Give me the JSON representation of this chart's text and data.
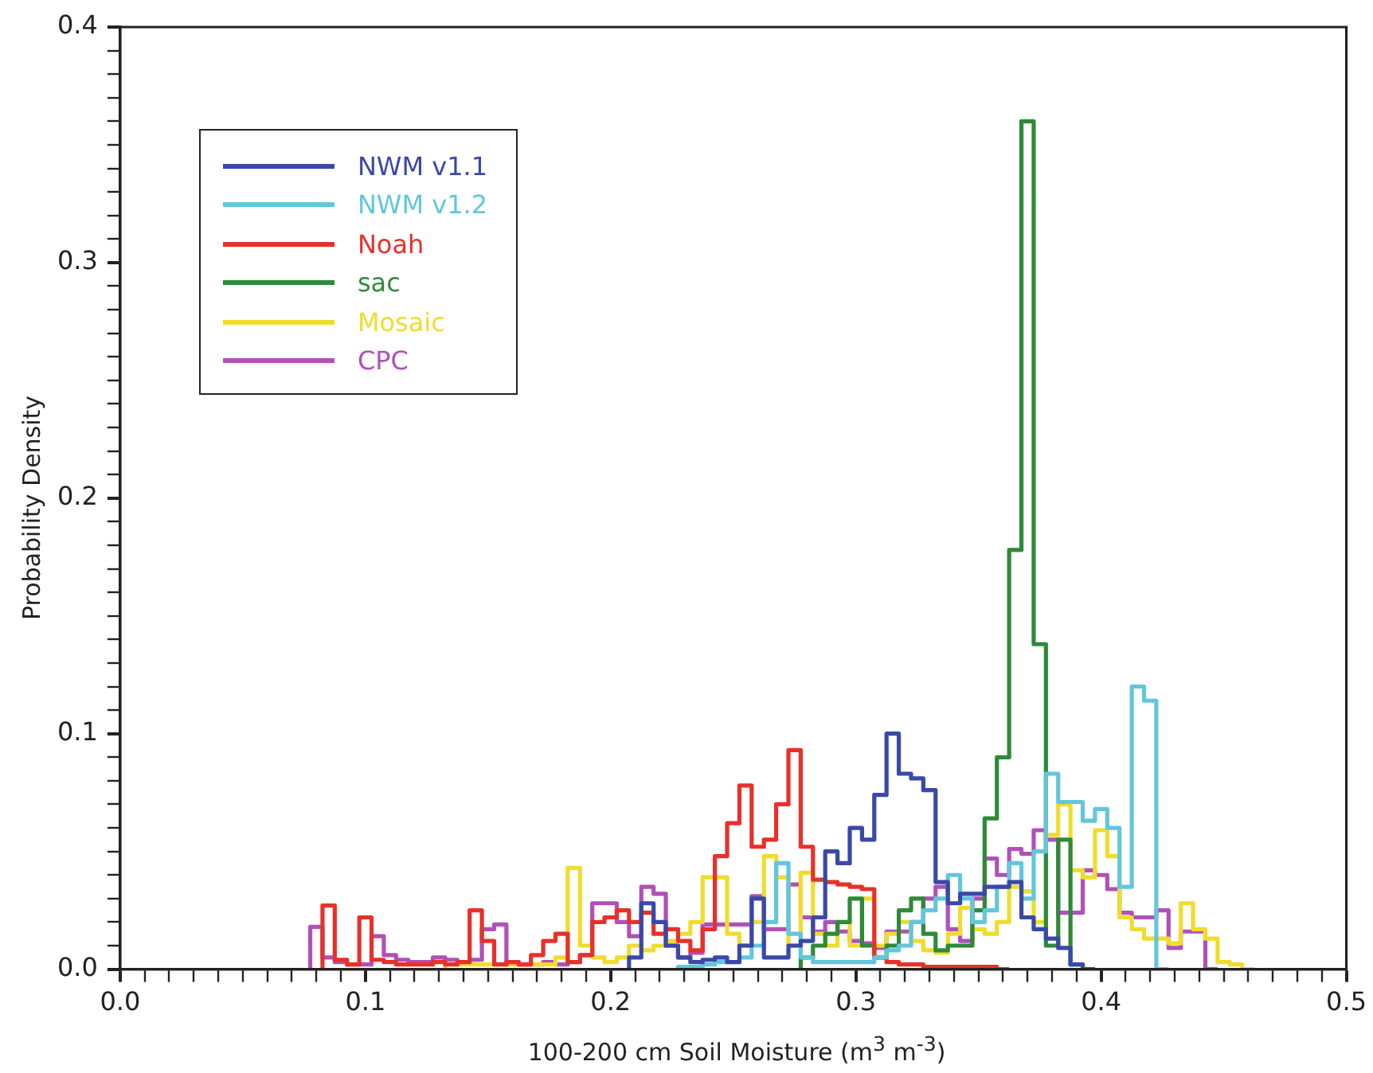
{
  "chart_data": {
    "type": "step",
    "xlabel": "100-200 cm Soil Moisture (m$^{3}$ m$^{-3}$)",
    "ylabel": "Probability Density",
    "x": [
      0.0775,
      0.0825,
      0.0875,
      0.0925,
      0.0975,
      0.1025,
      0.1075,
      0.1125,
      0.1175,
      0.1225,
      0.1275,
      0.1325,
      0.1375,
      0.1425,
      0.1475,
      0.1525,
      0.1575,
      0.1625,
      0.1675,
      0.1725,
      0.1775,
      0.1825,
      0.1875,
      0.1925,
      0.1975,
      0.2025,
      0.2075,
      0.2125,
      0.2175,
      0.2225,
      0.2275,
      0.2325,
      0.2375,
      0.2425,
      0.2475,
      0.2525,
      0.2575,
      0.2625,
      0.2675,
      0.2725,
      0.2775,
      0.2825,
      0.2875,
      0.2925,
      0.2975,
      0.3025,
      0.3075,
      0.3125,
      0.3175,
      0.3225,
      0.3275,
      0.3325,
      0.3375,
      0.3425,
      0.3475,
      0.3525,
      0.3575,
      0.3625,
      0.3675,
      0.3725,
      0.3775,
      0.3825,
      0.3875,
      0.3925,
      0.3975,
      0.4025,
      0.4075,
      0.4125,
      0.4175,
      0.4225,
      0.4275,
      0.4325,
      0.4375,
      0.4425,
      0.4475,
      0.4525,
      0.4575,
      0.4625
    ],
    "series": [
      {
        "name": "NWM v1.1",
        "color": "#3a48a8",
        "values": [
          null,
          null,
          null,
          null,
          null,
          null,
          null,
          null,
          null,
          null,
          null,
          null,
          null,
          null,
          null,
          null,
          null,
          null,
          null,
          null,
          null,
          null,
          null,
          null,
          null,
          null,
          0,
          0.005,
          0.028,
          0.02,
          0.01,
          0.005,
          0.003,
          0.004,
          0.005,
          0.003,
          0.01,
          0.03,
          0.005,
          0.005,
          0.01,
          0.012,
          0.022,
          0.05,
          0.045,
          0.06,
          0.055,
          0.074,
          0.1,
          0.083,
          0.081,
          0.076,
          0.037,
          0.028,
          0.032,
          0.032,
          0.035,
          0.035,
          0.037,
          0.022,
          0.017,
          0.013,
          0.009,
          0.002,
          0,
          null,
          null,
          null,
          null,
          null,
          null,
          null,
          null,
          null,
          null,
          null,
          null,
          null
        ]
      },
      {
        "name": "NWM v1.2",
        "color": "#62c6dc",
        "values": [
          null,
          null,
          null,
          null,
          null,
          null,
          null,
          null,
          null,
          null,
          null,
          null,
          null,
          null,
          null,
          null,
          null,
          null,
          null,
          null,
          null,
          null,
          null,
          null,
          null,
          null,
          null,
          null,
          null,
          null,
          0,
          0.001,
          0.001,
          0.002,
          0.003,
          0.003,
          0.005,
          0.01,
          0.02,
          0.045,
          0.015,
          0.005,
          0.003,
          0.003,
          0.003,
          0.003,
          0.003,
          0.005,
          0.008,
          0.01,
          0.02,
          0.025,
          0.03,
          0.04,
          0.03,
          0.02,
          0.025,
          0.035,
          0.045,
          0.03,
          0.05,
          0.083,
          0.071,
          0.071,
          0.063,
          0.068,
          0.06,
          0.035,
          0.12,
          0.114,
          0,
          null,
          null,
          null,
          null,
          null,
          null,
          null
        ]
      },
      {
        "name": "Noah",
        "color": "#e8302a",
        "values": [
          null,
          0,
          0.027,
          0.004,
          0.002,
          0.022,
          0.004,
          0.003,
          0.002,
          0.002,
          0.002,
          0.003,
          0.002,
          0.003,
          0.025,
          0.012,
          0.002,
          0.003,
          0.002,
          0.006,
          0.012,
          0.015,
          0.003,
          0.006,
          0.02,
          0.022,
          0.025,
          0.02,
          0.024,
          0.015,
          0.017,
          0.012,
          0.008,
          0.017,
          0.048,
          0.062,
          0.078,
          0.052,
          0.055,
          0.07,
          0.093,
          0.052,
          0.038,
          0.037,
          0.036,
          0.035,
          0.034,
          0.005,
          0.003,
          0.002,
          0.002,
          0.001,
          0.001,
          0.001,
          0.001,
          0.001,
          0.001,
          0,
          null,
          null,
          null,
          null,
          null,
          null,
          null,
          null,
          null,
          null,
          null,
          null,
          null,
          null,
          null,
          null,
          null,
          null,
          null,
          null
        ]
      },
      {
        "name": "sac",
        "color": "#2e8a38",
        "values": [
          null,
          null,
          null,
          null,
          null,
          null,
          null,
          null,
          null,
          null,
          null,
          null,
          null,
          null,
          null,
          null,
          null,
          null,
          null,
          null,
          null,
          null,
          null,
          null,
          null,
          null,
          null,
          null,
          null,
          null,
          null,
          null,
          null,
          null,
          null,
          null,
          null,
          null,
          null,
          null,
          0,
          0.005,
          0.01,
          0.015,
          0.02,
          0.03,
          0.01,
          0.005,
          0.01,
          0.025,
          0.03,
          0.015,
          0.008,
          0.01,
          0.01,
          0.025,
          0.064,
          0.09,
          0.178,
          0.36,
          0.138,
          0.01,
          0.055,
          0.002,
          0,
          null,
          null,
          null,
          null,
          null,
          null,
          null,
          null,
          null,
          null,
          null,
          null,
          null
        ]
      },
      {
        "name": "Mosaic",
        "color": "#f0dc2c",
        "values": [
          null,
          null,
          null,
          null,
          null,
          null,
          null,
          null,
          null,
          null,
          null,
          0,
          0.002,
          0.002,
          0.002,
          0.002,
          0.002,
          0.002,
          0.002,
          0.002,
          0.002,
          0.005,
          0.043,
          0.01,
          0.005,
          0.003,
          0.005,
          0.01,
          0.008,
          0.01,
          0.012,
          0.015,
          0.02,
          0.039,
          0.039,
          0.015,
          0.01,
          0.02,
          0.048,
          0.039,
          0.01,
          0.041,
          0.015,
          0.01,
          0.02,
          0.01,
          0.03,
          0.01,
          0.015,
          0.02,
          0.012,
          0.008,
          0.007,
          0.015,
          0.026,
          0.017,
          0.015,
          0.02,
          0.035,
          0.033,
          0.02,
          0.057,
          0.07,
          0.042,
          0.039,
          0.059,
          0.048,
          0.022,
          0.017,
          0.013,
          0.013,
          0.011,
          0.028,
          0.017,
          0.013,
          0.003,
          0.002,
          0
        ]
      },
      {
        "name": "CPC",
        "color": "#b050b8",
        "values": [
          0,
          0.018,
          0.005,
          0.003,
          0.002,
          0.002,
          0.014,
          0.006,
          0.004,
          0.003,
          0.003,
          0.005,
          0.004,
          0.003,
          0.004,
          0.017,
          0.019,
          0.003,
          0.002,
          0.002,
          0.003,
          0.002,
          0.003,
          0.006,
          0.028,
          0.028,
          0.02,
          0.014,
          0.035,
          0.032,
          0.01,
          0.005,
          0.007,
          0.019,
          0.019,
          0.019,
          0.019,
          0.031,
          0.017,
          0.017,
          0.036,
          0.022,
          0.016,
          0.02,
          0.016,
          0.012,
          0.011,
          0.009,
          0.016,
          0.016,
          0.02,
          0.03,
          0.035,
          0.017,
          0.012,
          0.03,
          0.047,
          0.04,
          0.051,
          0.049,
          0.059,
          0.055,
          0.024,
          0.024,
          0.042,
          0.04,
          0.034,
          0.024,
          0.022,
          0.022,
          0.025,
          0.009,
          0.016,
          0.016,
          0,
          null,
          null,
          null
        ]
      }
    ],
    "xlim": [
      0,
      0.5
    ],
    "xticks": [
      {
        "value": 0,
        "label": "0.0"
      },
      {
        "value": 0.01,
        "label": null
      },
      {
        "value": 0.02,
        "label": null
      },
      {
        "value": 0.03,
        "label": null
      },
      {
        "value": 0.04,
        "label": null
      },
      {
        "value": 0.05,
        "label": null
      },
      {
        "value": 0.06,
        "label": null
      },
      {
        "value": 0.07,
        "label": null
      },
      {
        "value": 0.08,
        "label": null
      },
      {
        "value": 0.09,
        "label": null
      },
      0.1,
      {
        "value": 0.11,
        "label": null
      },
      {
        "value": 0.12,
        "label": null
      },
      {
        "value": 0.13,
        "label": null
      },
      {
        "value": 0.14,
        "label": null
      },
      {
        "value": 0.15,
        "label": null
      },
      {
        "value": 0.16,
        "label": null
      },
      {
        "value": 0.17,
        "label": null
      },
      {
        "value": 0.18,
        "label": null
      },
      {
        "value": 0.19,
        "label": null
      },
      0.2,
      {
        "value": 0.21,
        "label": null
      },
      {
        "value": 0.22,
        "label": null
      },
      {
        "value": 0.23,
        "label": null
      },
      {
        "value": 0.24,
        "label": null
      },
      {
        "value": 0.25,
        "label": null
      },
      {
        "value": 0.26,
        "label": null
      },
      {
        "value": 0.27,
        "label": null
      },
      {
        "value": 0.28,
        "label": null
      },
      {
        "value": 0.29,
        "label": null
      },
      0.3,
      {
        "value": 0.31,
        "label": null
      },
      {
        "value": 0.32,
        "label": null
      },
      {
        "value": 0.33,
        "label": null
      },
      {
        "value": 0.34,
        "label": null
      },
      {
        "value": 0.35,
        "label": null
      },
      {
        "value": 0.36,
        "label": null
      },
      {
        "value": 0.37,
        "label": null
      },
      {
        "value": 0.38,
        "label": null
      },
      {
        "value": 0.39,
        "label": null
      },
      0.4,
      {
        "value": 0.41,
        "label": null
      },
      {
        "value": 0.42,
        "label": null
      },
      {
        "value": 0.43,
        "label": null
      },
      {
        "value": 0.44,
        "label": null
      },
      {
        "value": 0.45,
        "label": null
      },
      {
        "value": 0.46,
        "label": null
      },
      {
        "value": 0.47,
        "label": null
      },
      {
        "value": 0.48,
        "label": null
      },
      {
        "value": 0.49,
        "label": null
      },
      0.5
    ],
    "ylim": [
      0,
      0.4
    ],
    "yticks": [
      {
        "value": 0,
        "label": "0.0"
      },
      {
        "value": 0.01,
        "label": null
      },
      {
        "value": 0.02,
        "label": null
      },
      {
        "value": 0.03,
        "label": null
      },
      {
        "value": 0.04,
        "label": null
      },
      {
        "value": 0.05,
        "label": null
      },
      {
        "value": 0.06,
        "label": null
      },
      {
        "value": 0.07,
        "label": null
      },
      {
        "value": 0.08,
        "label": null
      },
      {
        "value": 0.09,
        "label": null
      },
      0.1,
      {
        "value": 0.11,
        "label": null
      },
      {
        "value": 0.12,
        "label": null
      },
      {
        "value": 0.13,
        "label": null
      },
      {
        "value": 0.14,
        "label": null
      },
      {
        "value": 0.15,
        "label": null
      },
      {
        "value": 0.16,
        "label": null
      },
      {
        "value": 0.17,
        "label": null
      },
      {
        "value": 0.18,
        "label": null
      },
      {
        "value": 0.19,
        "label": null
      },
      0.2,
      {
        "value": 0.21,
        "label": null
      },
      {
        "value": 0.22,
        "label": null
      },
      {
        "value": 0.23,
        "label": null
      },
      {
        "value": 0.24,
        "label": null
      },
      {
        "value": 0.25,
        "label": null
      },
      {
        "value": 0.26,
        "label": null
      },
      {
        "value": 0.27,
        "label": null
      },
      {
        "value": 0.28,
        "label": null
      },
      {
        "value": 0.29,
        "label": null
      },
      0.3,
      {
        "value": 0.31,
        "label": null
      },
      {
        "value": 0.32,
        "label": null
      },
      {
        "value": 0.33,
        "label": null
      },
      {
        "value": 0.34,
        "label": null
      },
      {
        "value": 0.35,
        "label": null
      },
      {
        "value": 0.36,
        "label": null
      },
      {
        "value": 0.37,
        "label": null
      },
      {
        "value": 0.38,
        "label": null
      },
      {
        "value": 0.39,
        "label": null
      },
      0.4
    ],
    "legend": "top left"
  }
}
